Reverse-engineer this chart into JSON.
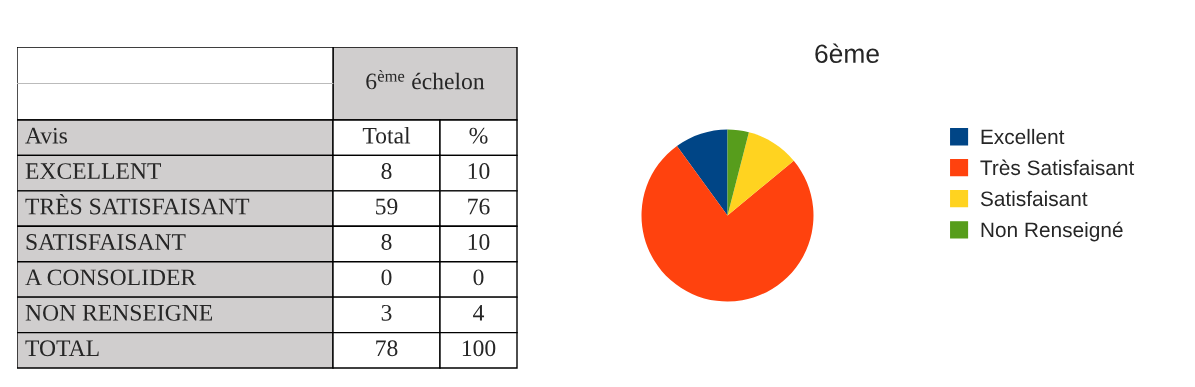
{
  "chart_data": [
    {
      "type": "other",
      "title": "6$^{ème}$ échelon",
      "categories": [
        "Avis",
        "Total",
        "%"
      ],
      "y_categories": [
        "EXCELLENT",
        "TRÈS SATISFAISANT",
        "SATISFAISANT",
        "A CONSOLIDER",
        "NON RENSEIGNE",
        "TOTAL"
      ],
      "cell_labels": [
        [
          "8",
          "10"
        ],
        [
          "59",
          "76"
        ],
        [
          "8",
          "10"
        ],
        [
          "0",
          "0"
        ],
        [
          "3",
          "4"
        ],
        [
          "78",
          "100"
        ]
      ]
    },
    {
      "type": "pie",
      "title": "6ème",
      "categories": [
        "Excellent",
        "Très Satisfaisant",
        "Satisfaisant",
        "Non Renseigné"
      ],
      "values": [
        10,
        76,
        10,
        4
      ],
      "colors": [
        "#004586",
        "#ff420e",
        "#ffd320",
        "#579d1c"
      ],
      "legend": "right"
    }
  ]
}
